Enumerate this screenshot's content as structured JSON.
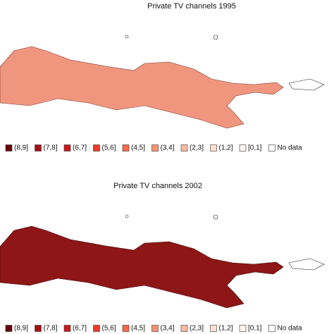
{
  "maps": [
    {
      "title": "Private TV channels 1995",
      "legend": [
        {
          "label": "(8,9]",
          "color": "#67000d"
        },
        {
          "label": "(7,8]",
          "color": "#a50f15"
        },
        {
          "label": "(6,7]",
          "color": "#cb181d"
        },
        {
          "label": "(5,6]",
          "color": "#ef3b2c"
        },
        {
          "label": "(4,5]",
          "color": "#fb6a4a"
        },
        {
          "label": "(3,4]",
          "color": "#fc9272"
        },
        {
          "label": "(2,3]",
          "color": "#fcbba1"
        },
        {
          "label": "(1,2]",
          "color": "#fee0d2"
        },
        {
          "label": "[0,1]",
          "color": "#fff5f0"
        },
        {
          "label": "No data",
          "color": "#ffffff"
        }
      ]
    },
    {
      "title": "Private TV channels 2002",
      "legend": [
        {
          "label": "(8,9]",
          "color": "#67000d"
        },
        {
          "label": "(7,8]",
          "color": "#a50f15"
        },
        {
          "label": "(6,7]",
          "color": "#cb181d"
        },
        {
          "label": "(5,6]",
          "color": "#ef3b2c"
        },
        {
          "label": "(4,5]",
          "color": "#fb6a4a"
        },
        {
          "label": "(3,4]",
          "color": "#fc9272"
        },
        {
          "label": "(2,3]",
          "color": "#fcbba1"
        },
        {
          "label": "(1,2]",
          "color": "#fee0d2"
        },
        {
          "label": "[0,1]",
          "color": "#fff5f0"
        },
        {
          "label": "No data",
          "color": "#ffffff"
        }
      ]
    }
  ]
}
